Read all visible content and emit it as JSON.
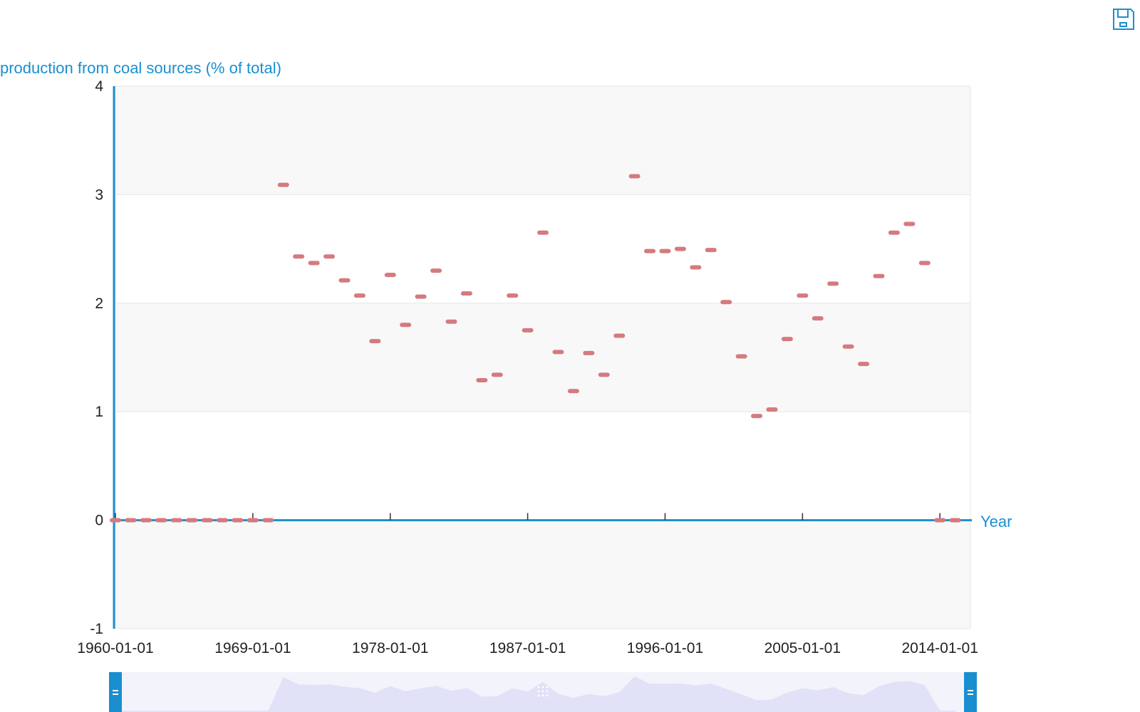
{
  "toolbar": {
    "save_icon": "save-icon"
  },
  "colors": {
    "accent": "#1a8fd0",
    "marker": "#d57a7f",
    "band": "#f8f8f9",
    "grid": "#e6e6e6",
    "zoom_fill": "#e4e3f8"
  },
  "chart_data": {
    "type": "scatter",
    "title": "",
    "ylabel": "production from coal sources (% of total)",
    "xlabel": "Year",
    "ylim": [
      -1,
      4
    ],
    "yticks": [
      -1,
      0,
      1,
      2,
      3,
      4
    ],
    "xlim": [
      "1960-01-01",
      "2016-01-01"
    ],
    "xticks": [
      "1960-01-01",
      "1969-01-01",
      "1978-01-01",
      "1987-01-01",
      "1996-01-01",
      "2005-01-01",
      "2014-01-01"
    ],
    "grid": true,
    "legend": "none",
    "series": [
      {
        "marker": "dash",
        "x": [
          "1960-01-01",
          "1961-01-01",
          "1962-01-01",
          "1963-01-01",
          "1964-01-01",
          "1965-01-01",
          "1966-01-01",
          "1967-01-01",
          "1968-01-01",
          "1969-01-01",
          "1970-01-01",
          "1971-01-01",
          "1972-01-01",
          "1973-01-01",
          "1974-01-01",
          "1975-01-01",
          "1976-01-01",
          "1977-01-01",
          "1978-01-01",
          "1979-01-01",
          "1980-01-01",
          "1981-01-01",
          "1982-01-01",
          "1983-01-01",
          "1984-01-01",
          "1985-01-01",
          "1986-01-01",
          "1987-01-01",
          "1988-01-01",
          "1989-01-01",
          "1990-01-01",
          "1991-01-01",
          "1992-01-01",
          "1993-01-01",
          "1994-01-01",
          "1995-01-01",
          "1996-01-01",
          "1997-01-01",
          "1998-01-01",
          "1999-01-01",
          "2000-01-01",
          "2001-01-01",
          "2002-01-01",
          "2003-01-01",
          "2004-01-01",
          "2005-01-01",
          "2006-01-01",
          "2007-01-01",
          "2008-01-01",
          "2009-01-01",
          "2010-01-01",
          "2011-01-01",
          "2012-01-01",
          "2013-01-01",
          "2014-01-01",
          "2015-01-01"
        ],
        "y": [
          0,
          0,
          0,
          0,
          0,
          0,
          0,
          0,
          0,
          0,
          0,
          3.09,
          2.43,
          2.37,
          2.43,
          2.21,
          2.07,
          1.65,
          2.26,
          1.8,
          2.06,
          2.3,
          1.83,
          2.09,
          1.29,
          1.34,
          2.07,
          1.75,
          2.65,
          1.55,
          1.19,
          1.54,
          1.34,
          1.7,
          3.17,
          2.48,
          2.48,
          2.5,
          2.33,
          2.49,
          2.01,
          1.51,
          0.96,
          1.02,
          1.67,
          2.07,
          1.86,
          2.18,
          1.6,
          1.44,
          2.25,
          2.65,
          2.73,
          2.37,
          0,
          0
        ]
      }
    ],
    "navigator": {
      "range": [
        "1960-01-01",
        "2016-01-01"
      ]
    }
  }
}
